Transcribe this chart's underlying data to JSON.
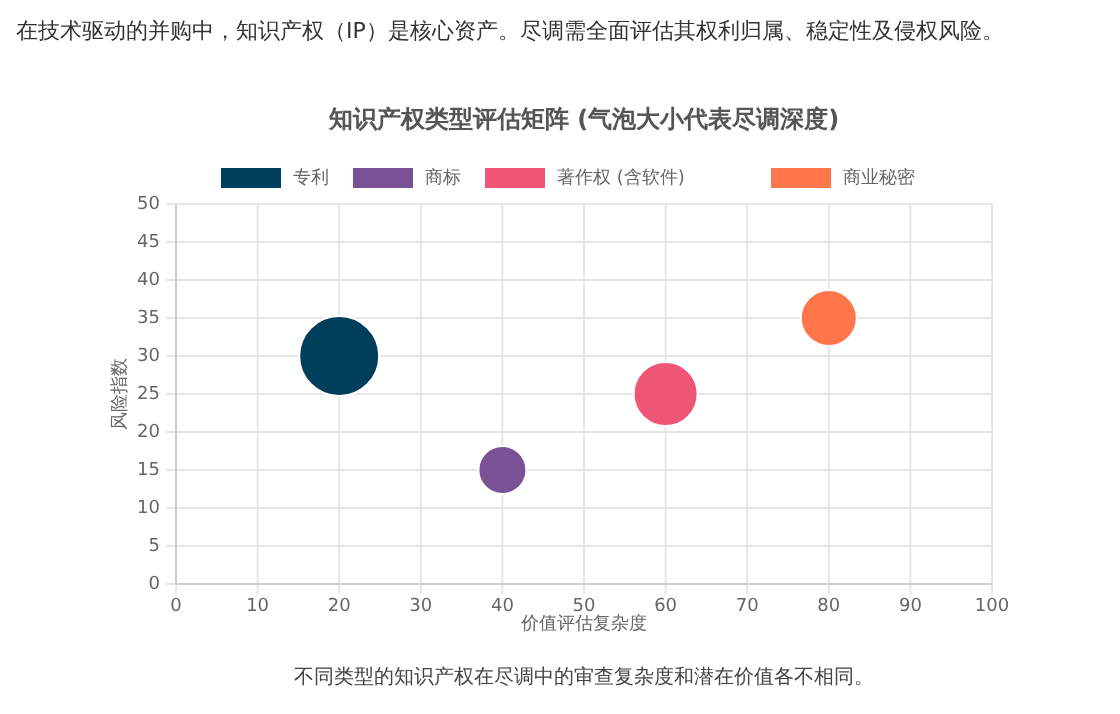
{
  "chart_data": {
    "type": "bubble",
    "title": "知识产权类型评估矩阵 (气泡大小代表尽调深度)",
    "xlabel": "价值评估复杂度",
    "ylabel": "风险指数",
    "annotations": [
      "在技术驱动的并购中，知识产权（IP）是核心资产。尽调需全面评估其权利归属、稳定性及侵权风险。",
      "不同类型的知识产权在尽调中的审查复杂度和潜在价值各不相同。"
    ],
    "series": [
      {
        "name": "专利",
        "color": "#003f5c",
        "x": [
          20
        ],
        "values": [
          30
        ],
        "sizes": [
          1
        ]
      },
      {
        "name": "商标",
        "color": "#7a5195",
        "x": [
          40
        ],
        "values": [
          15
        ],
        "sizes": [
          0.36
        ]
      },
      {
        "name": "著作权 (含软件)",
        "color": "#ef5675",
        "x": [
          60
        ],
        "values": [
          25
        ],
        "sizes": [
          0.64
        ]
      },
      {
        "name": "商业秘密",
        "color": "#ff764a",
        "x": [
          80
        ],
        "values": [
          35
        ],
        "sizes": [
          0.49
        ]
      }
    ],
    "xlim": [
      0,
      100
    ],
    "xticks": [
      0,
      10,
      20,
      30,
      40,
      50,
      60,
      70,
      80,
      90,
      100
    ],
    "ylim": [
      0,
      50
    ],
    "yticks": [
      0,
      5,
      10,
      15,
      20,
      25,
      30,
      35,
      40,
      45,
      50
    ],
    "grid": true,
    "legend": "top"
  }
}
